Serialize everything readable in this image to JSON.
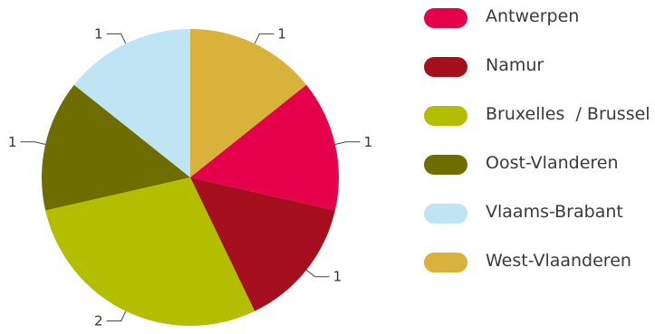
{
  "chart_data": {
    "type": "pie",
    "categories": [
      "Antwerpen",
      "Namur",
      "Bruxelles  / Brussel",
      "Oost-Vlanderen",
      "Vlaams-Brabant",
      "West-Vlaanderen"
    ],
    "values": [
      1,
      1,
      2,
      1,
      1,
      1
    ],
    "colors": [
      "#e4004b",
      "#a50f1e",
      "#b4be00",
      "#6e6d00",
      "#bfe5f5",
      "#d9b23b"
    ],
    "start_category": "West-Vlaanderen",
    "direction": "clockwise",
    "start_angle_deg": 0,
    "data_labels": true,
    "legend_position": "right"
  }
}
